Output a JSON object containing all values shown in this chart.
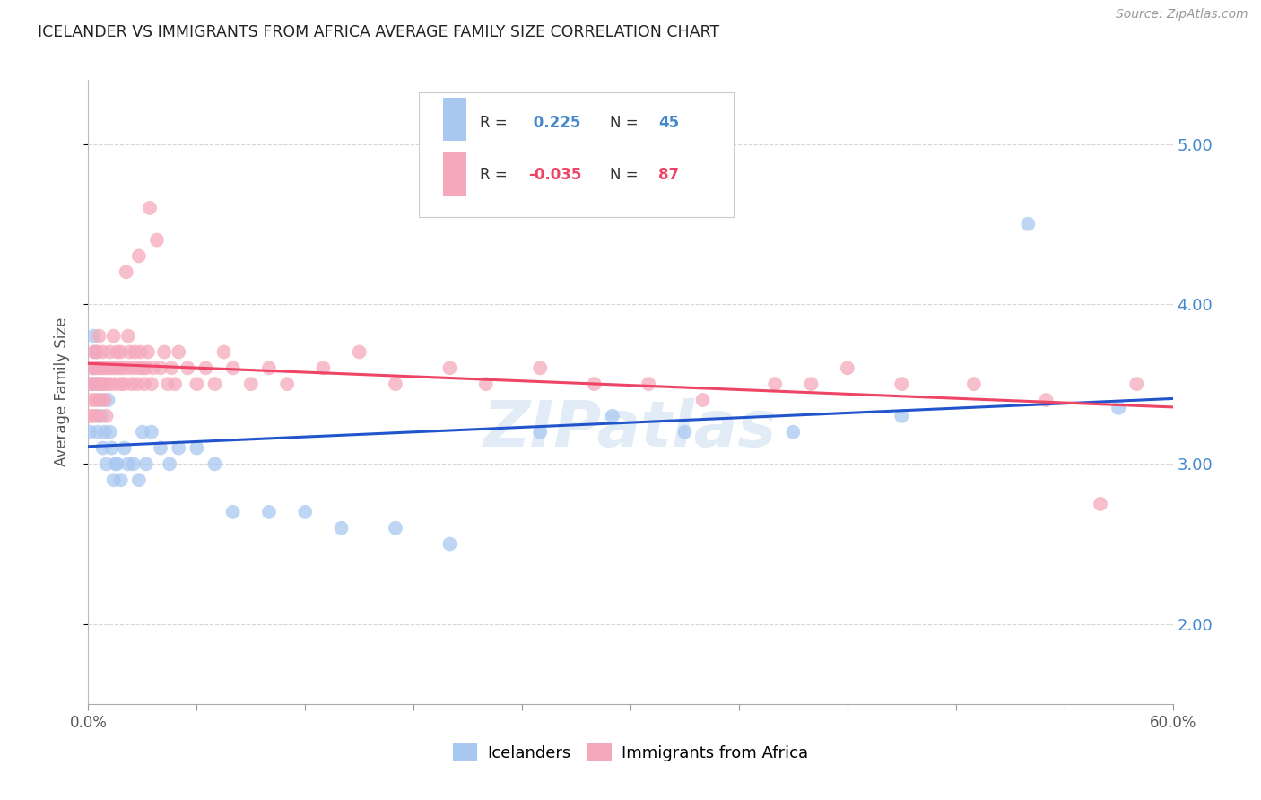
{
  "title": "ICELANDER VS IMMIGRANTS FROM AFRICA AVERAGE FAMILY SIZE CORRELATION CHART",
  "source": "Source: ZipAtlas.com",
  "ylabel": "Average Family Size",
  "yticks": [
    2.0,
    3.0,
    4.0,
    5.0
  ],
  "xlim": [
    0.0,
    0.6
  ],
  "ylim": [
    1.5,
    5.4
  ],
  "r_icelander": 0.225,
  "n_icelander": 45,
  "r_africa": -0.035,
  "n_africa": 87,
  "color_icelander": "#A8C8F0",
  "color_africa": "#F5A8BC",
  "line_color_icelander": "#2255CC",
  "line_color_africa": "#EE4466",
  "background_color": "#FFFFFF",
  "grid_color": "#CCCCCC",
  "title_color": "#222222",
  "watermark": "ZIPatlas",
  "icelander_x": [
    0.001,
    0.002,
    0.003,
    0.003,
    0.004,
    0.005,
    0.005,
    0.006,
    0.007,
    0.007,
    0.008,
    0.009,
    0.01,
    0.011,
    0.012,
    0.013,
    0.014,
    0.015,
    0.016,
    0.018,
    0.02,
    0.022,
    0.025,
    0.028,
    0.03,
    0.032,
    0.035,
    0.04,
    0.045,
    0.05,
    0.06,
    0.07,
    0.08,
    0.1,
    0.12,
    0.14,
    0.17,
    0.2,
    0.25,
    0.29,
    0.33,
    0.39,
    0.45,
    0.52,
    0.57
  ],
  "icelander_y": [
    3.2,
    3.5,
    3.6,
    3.8,
    3.7,
    3.2,
    3.5,
    3.4,
    3.3,
    3.5,
    3.1,
    3.2,
    3.0,
    3.4,
    3.2,
    3.1,
    2.9,
    3.0,
    3.0,
    2.9,
    3.1,
    3.0,
    3.0,
    2.9,
    3.2,
    3.0,
    3.2,
    3.1,
    3.0,
    3.1,
    3.1,
    3.0,
    2.7,
    2.7,
    2.7,
    2.6,
    2.6,
    2.5,
    3.2,
    3.3,
    3.2,
    3.2,
    3.3,
    4.5,
    3.35
  ],
  "africa_x": [
    0.001,
    0.001,
    0.002,
    0.002,
    0.003,
    0.003,
    0.003,
    0.004,
    0.004,
    0.005,
    0.005,
    0.005,
    0.006,
    0.006,
    0.006,
    0.007,
    0.007,
    0.008,
    0.008,
    0.009,
    0.009,
    0.01,
    0.01,
    0.011,
    0.012,
    0.012,
    0.013,
    0.014,
    0.015,
    0.015,
    0.016,
    0.017,
    0.018,
    0.018,
    0.019,
    0.02,
    0.021,
    0.022,
    0.022,
    0.023,
    0.024,
    0.025,
    0.026,
    0.027,
    0.028,
    0.028,
    0.029,
    0.03,
    0.031,
    0.032,
    0.033,
    0.034,
    0.035,
    0.036,
    0.038,
    0.04,
    0.042,
    0.044,
    0.046,
    0.048,
    0.05,
    0.055,
    0.06,
    0.065,
    0.07,
    0.075,
    0.08,
    0.09,
    0.1,
    0.11,
    0.13,
    0.15,
    0.17,
    0.2,
    0.22,
    0.25,
    0.28,
    0.31,
    0.34,
    0.38,
    0.4,
    0.42,
    0.45,
    0.49,
    0.53,
    0.56,
    0.58
  ],
  "africa_y": [
    3.5,
    3.3,
    3.6,
    3.4,
    3.5,
    3.3,
    3.7,
    3.6,
    3.4,
    3.5,
    3.7,
    3.3,
    3.8,
    3.5,
    3.6,
    3.6,
    3.4,
    3.5,
    3.7,
    3.6,
    3.4,
    3.5,
    3.3,
    3.6,
    3.7,
    3.5,
    3.6,
    3.8,
    3.5,
    3.6,
    3.7,
    3.6,
    3.5,
    3.7,
    3.6,
    3.5,
    4.2,
    3.8,
    3.6,
    3.7,
    3.5,
    3.6,
    3.7,
    3.5,
    4.3,
    3.6,
    3.7,
    3.6,
    3.5,
    3.6,
    3.7,
    4.6,
    3.5,
    3.6,
    4.4,
    3.6,
    3.7,
    3.5,
    3.6,
    3.5,
    3.7,
    3.6,
    3.5,
    3.6,
    3.5,
    3.7,
    3.6,
    3.5,
    3.6,
    3.5,
    3.6,
    3.7,
    3.5,
    3.6,
    3.5,
    3.6,
    3.5,
    3.5,
    3.4,
    3.5,
    3.5,
    3.6,
    3.5,
    3.5,
    3.4,
    2.75,
    3.5
  ]
}
